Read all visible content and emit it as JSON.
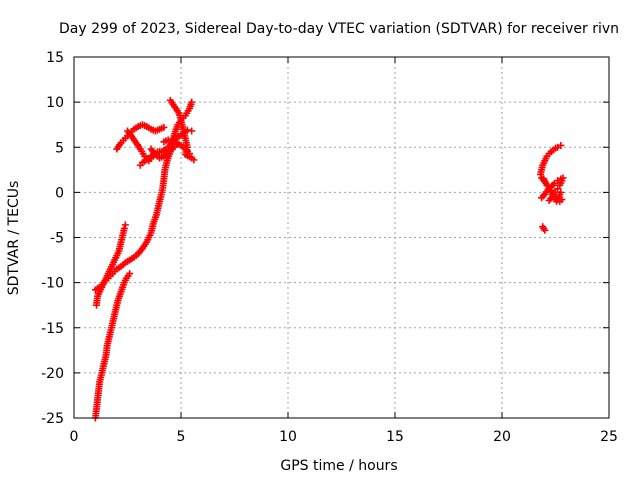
{
  "chart_data": {
    "type": "scatter",
    "title": "Day 299 of 2023, Sidereal Day-to-day VTEC variation (SDTVAR) for receiver rivn",
    "xlabel": "GPS time / hours",
    "ylabel": "SDTVAR / TECUs",
    "xlim": [
      0,
      25
    ],
    "ylim": [
      -25,
      15
    ],
    "x_ticks": [
      "0",
      "5",
      "10",
      "15",
      "20",
      "25"
    ],
    "y_ticks": [
      "15",
      "10",
      "5",
      "0",
      "-5",
      "-10",
      "-15",
      "-20",
      "-25"
    ],
    "grid": true,
    "legend": "none",
    "marker": "plus",
    "series": [
      {
        "color": "#ff0000",
        "segments": [
          [
            [
              1.0,
              -25
            ],
            [
              1.05,
              -24
            ],
            [
              1.1,
              -23
            ],
            [
              1.15,
              -22
            ],
            [
              1.2,
              -21
            ],
            [
              1.3,
              -20
            ],
            [
              1.4,
              -19
            ],
            [
              1.5,
              -18
            ],
            [
              1.55,
              -17
            ],
            [
              1.65,
              -16
            ],
            [
              1.75,
              -15
            ],
            [
              1.85,
              -14
            ],
            [
              1.95,
              -13
            ],
            [
              2.05,
              -12
            ],
            [
              2.2,
              -11
            ],
            [
              2.35,
              -10
            ],
            [
              2.45,
              -9.5
            ],
            [
              2.6,
              -9
            ]
          ],
          [
            [
              1.05,
              -12.5
            ],
            [
              1.1,
              -11.5
            ],
            [
              1.2,
              -11
            ],
            [
              1.3,
              -10.5
            ],
            [
              1.4,
              -10
            ],
            [
              1.5,
              -9.5
            ],
            [
              1.6,
              -9
            ],
            [
              1.7,
              -8.5
            ],
            [
              1.8,
              -8
            ],
            [
              1.9,
              -7.5
            ],
            [
              2.0,
              -7
            ],
            [
              2.1,
              -6.5
            ],
            [
              2.15,
              -6
            ],
            [
              2.2,
              -5.5
            ],
            [
              2.25,
              -5
            ],
            [
              2.3,
              -4.5
            ],
            [
              2.35,
              -4
            ],
            [
              2.4,
              -3.6
            ]
          ],
          [
            [
              1.0,
              -10.8
            ],
            [
              1.2,
              -10.5
            ],
            [
              1.4,
              -10
            ],
            [
              1.6,
              -9.5
            ],
            [
              1.8,
              -9
            ],
            [
              2.0,
              -8.5
            ],
            [
              2.2,
              -8.2
            ],
            [
              2.4,
              -7.8
            ],
            [
              2.6,
              -7.5
            ],
            [
              2.8,
              -7.2
            ],
            [
              3.0,
              -6.8
            ],
            [
              3.2,
              -6.2
            ],
            [
              3.4,
              -5.5
            ],
            [
              3.6,
              -4.5
            ],
            [
              3.7,
              -3.5
            ],
            [
              3.85,
              -2.5
            ],
            [
              3.95,
              -1.5
            ],
            [
              4.05,
              -0.5
            ],
            [
              4.15,
              0.5
            ],
            [
              4.2,
              1.5
            ],
            [
              4.25,
              2.5
            ],
            [
              4.35,
              3.5
            ],
            [
              4.5,
              4.5
            ],
            [
              4.6,
              5.5
            ],
            [
              4.7,
              6.5
            ],
            [
              4.85,
              7.5
            ],
            [
              5.0,
              8
            ],
            [
              5.2,
              8.5
            ],
            [
              5.4,
              9.3
            ],
            [
              5.5,
              10
            ]
          ],
          [
            [
              2.0,
              4.8
            ],
            [
              2.2,
              5.5
            ],
            [
              2.4,
              6
            ],
            [
              2.6,
              6.5
            ],
            [
              2.8,
              7
            ],
            [
              3.0,
              7.3
            ],
            [
              3.2,
              7.5
            ],
            [
              3.4,
              7.3
            ],
            [
              3.6,
              7
            ],
            [
              3.8,
              6.8
            ],
            [
              4.0,
              7
            ],
            [
              4.2,
              7.2
            ]
          ],
          [
            [
              2.5,
              6.8
            ],
            [
              2.7,
              6.2
            ],
            [
              2.9,
              5.5
            ],
            [
              3.1,
              4.8
            ],
            [
              3.3,
              4
            ],
            [
              3.5,
              3.5
            ],
            [
              3.7,
              4
            ],
            [
              3.9,
              4.5
            ],
            [
              4.1,
              4.5
            ],
            [
              4.3,
              4.8
            ],
            [
              4.5,
              5.2
            ],
            [
              4.7,
              5.8
            ],
            [
              4.9,
              6.2
            ],
            [
              5.1,
              6.5
            ],
            [
              5.3,
              6.9
            ],
            [
              5.5,
              6.8
            ]
          ],
          [
            [
              3.1,
              3.0
            ],
            [
              3.2,
              3.3
            ],
            [
              3.4,
              3.6
            ],
            [
              3.6,
              4.0
            ],
            [
              3.8,
              4.3
            ],
            [
              4.0,
              4.5
            ],
            [
              4.2,
              4.6
            ]
          ],
          [
            [
              4.5,
              10.2
            ],
            [
              4.7,
              9.5
            ],
            [
              4.9,
              8.8
            ],
            [
              5.0,
              8
            ],
            [
              5.1,
              7
            ],
            [
              5.2,
              6
            ],
            [
              5.3,
              5
            ],
            [
              5.2,
              4.2
            ],
            [
              5.5,
              3.8
            ],
            [
              5.6,
              3.6
            ]
          ],
          [
            [
              4.2,
              5.6
            ],
            [
              4.4,
              5.8
            ],
            [
              4.6,
              5.9
            ],
            [
              4.8,
              5.5
            ],
            [
              5.0,
              5.2
            ],
            [
              5.2,
              4.8
            ],
            [
              5.4,
              4.3
            ]
          ],
          [
            [
              3.6,
              4.8
            ],
            [
              3.8,
              4.2
            ],
            [
              4.0,
              3.8
            ],
            [
              4.2,
              4.0
            ],
            [
              4.4,
              4.3
            ],
            [
              4.6,
              4.8
            ],
            [
              4.8,
              5.3
            ]
          ]
        ]
      },
      {
        "color": "#ff0000",
        "segments": [
          [
            [
              21.9,
              -3.8
            ],
            [
              21.95,
              -4.0
            ],
            [
              22.0,
              -4.2
            ]
          ],
          [
            [
              21.8,
              2.0
            ],
            [
              21.9,
              3.0
            ],
            [
              22.0,
              3.5
            ],
            [
              22.1,
              4.0
            ],
            [
              22.2,
              4.3
            ],
            [
              22.3,
              4.5
            ],
            [
              22.4,
              4.7
            ],
            [
              22.5,
              4.9
            ],
            [
              22.6,
              5.0
            ],
            [
              22.75,
              5.2
            ]
          ],
          [
            [
              21.85,
              1.6
            ],
            [
              22.0,
              1.2
            ],
            [
              22.1,
              0.8
            ],
            [
              22.2,
              0.5
            ],
            [
              22.3,
              0.2
            ],
            [
              22.4,
              -0.2
            ],
            [
              22.5,
              -0.5
            ],
            [
              22.6,
              -0.8
            ],
            [
              22.7,
              -1.0
            ],
            [
              22.8,
              -0.8
            ]
          ],
          [
            [
              21.85,
              -0.6
            ],
            [
              22.0,
              -0.2
            ],
            [
              22.15,
              0.3
            ],
            [
              22.3,
              0.6
            ],
            [
              22.45,
              1.0
            ],
            [
              22.6,
              1.3
            ],
            [
              22.75,
              1.5
            ],
            [
              22.85,
              1.6
            ]
          ],
          [
            [
              21.95,
              1.5
            ],
            [
              22.05,
              1.0
            ],
            [
              22.2,
              0.5
            ],
            [
              22.3,
              0.0
            ],
            [
              22.4,
              -0.5
            ],
            [
              22.55,
              -1.0
            ],
            [
              22.65,
              -0.5
            ],
            [
              22.75,
              0.0
            ]
          ],
          [
            [
              22.2,
              -0.9
            ],
            [
              22.35,
              -0.5
            ],
            [
              22.5,
              0.0
            ],
            [
              22.6,
              0.4
            ],
            [
              22.7,
              0.8
            ],
            [
              22.8,
              1.3
            ]
          ]
        ]
      }
    ]
  }
}
